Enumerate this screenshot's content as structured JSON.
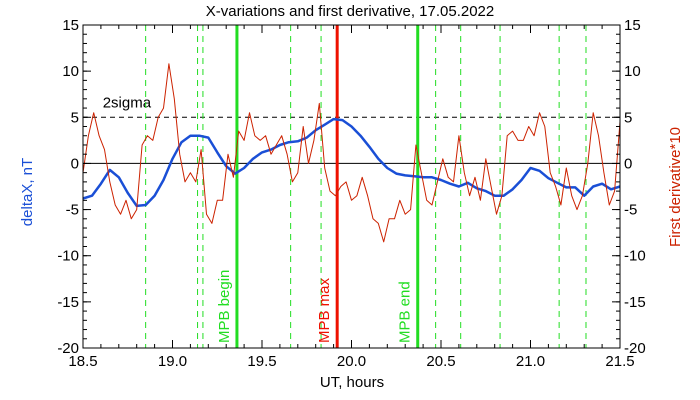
{
  "chart_data": {
    "type": "line",
    "title": "X-variations and first derivative, 17.05.2022",
    "xlabel": "UT, hours",
    "ylabel_left": "deltaX, nT",
    "ylabel_right": "First derivative*10",
    "xlim": [
      18.5,
      21.5
    ],
    "ylim": [
      -20,
      15
    ],
    "xticks": [
      18.5,
      19.0,
      19.5,
      20.0,
      20.5,
      21.0,
      21.5
    ],
    "xtick_labels": [
      "18.5",
      "19.0",
      "19.5",
      "20.0",
      "20.5",
      "21.0",
      "21.5"
    ],
    "yticks": [
      -20,
      -15,
      -10,
      -5,
      0,
      5,
      10,
      15
    ],
    "ytick_labels": [
      "-20",
      "-15",
      "-10",
      "-5",
      "0",
      "5",
      "10",
      "15"
    ],
    "sigma_level": 5,
    "sigma_label": "2sigma",
    "colors": {
      "deltaX": "#1a4fd6",
      "derivative": "#cc2200",
      "mpb_boundary": "#22dd22",
      "mpb_max": "#ee1100",
      "axis": "#000000"
    },
    "series": [
      {
        "name": "deltaX, nT",
        "color": "#1a4fd6",
        "x": [
          18.5,
          18.55,
          18.6,
          18.65,
          18.7,
          18.75,
          18.8,
          18.85,
          18.9,
          18.95,
          19.0,
          19.05,
          19.1,
          19.15,
          19.2,
          19.25,
          19.3,
          19.35,
          19.4,
          19.45,
          19.5,
          19.55,
          19.6,
          19.65,
          19.7,
          19.75,
          19.8,
          19.85,
          19.9,
          19.95,
          20.0,
          20.05,
          20.1,
          20.15,
          20.2,
          20.25,
          20.3,
          20.35,
          20.4,
          20.45,
          20.5,
          20.55,
          20.6,
          20.65,
          20.7,
          20.75,
          20.8,
          20.85,
          20.9,
          20.95,
          21.0,
          21.05,
          21.1,
          21.15,
          21.2,
          21.25,
          21.3,
          21.35,
          21.4,
          21.45,
          21.5
        ],
        "y": [
          -3.8,
          -3.5,
          -2.2,
          -0.7,
          -1.5,
          -3.2,
          -4.6,
          -4.5,
          -3.5,
          -1.8,
          0.5,
          2.3,
          3.0,
          3.0,
          2.8,
          1.2,
          -0.3,
          -1.1,
          -0.5,
          0.5,
          1.2,
          1.5,
          2.0,
          2.3,
          2.4,
          2.8,
          3.6,
          4.2,
          4.8,
          4.7,
          4.0,
          3.0,
          1.8,
          0.5,
          -0.5,
          -1.1,
          -1.3,
          -1.4,
          -1.5,
          -1.5,
          -1.8,
          -2.2,
          -2.5,
          -2.1,
          -2.7,
          -3.0,
          -3.5,
          -3.5,
          -2.8,
          -1.8,
          -0.5,
          -0.8,
          -1.6,
          -2.1,
          -2.6,
          -2.6,
          -3.5,
          -2.5,
          -2.2,
          -2.8,
          -2.5
        ]
      },
      {
        "name": "First derivative*10",
        "color": "#cc2200",
        "x": [
          18.5,
          18.53,
          18.56,
          18.59,
          18.62,
          18.65,
          18.68,
          18.71,
          18.74,
          18.77,
          18.8,
          18.83,
          18.86,
          18.89,
          18.92,
          18.95,
          18.98,
          19.01,
          19.04,
          19.07,
          19.1,
          19.13,
          19.16,
          19.19,
          19.22,
          19.25,
          19.28,
          19.31,
          19.34,
          19.37,
          19.4,
          19.43,
          19.46,
          19.49,
          19.52,
          19.55,
          19.58,
          19.61,
          19.64,
          19.67,
          19.7,
          19.73,
          19.76,
          19.79,
          19.82,
          19.85,
          19.88,
          19.91,
          19.94,
          19.97,
          20.0,
          20.03,
          20.06,
          20.09,
          20.12,
          20.15,
          20.18,
          20.21,
          20.24,
          20.27,
          20.3,
          20.33,
          20.36,
          20.39,
          20.42,
          20.45,
          20.48,
          20.51,
          20.54,
          20.57,
          20.6,
          20.63,
          20.66,
          20.69,
          20.72,
          20.75,
          20.78,
          20.81,
          20.84,
          20.87,
          20.9,
          20.93,
          20.96,
          20.99,
          21.02,
          21.05,
          21.08,
          21.11,
          21.14,
          21.17,
          21.2,
          21.23,
          21.26,
          21.29,
          21.32,
          21.35,
          21.38,
          21.41,
          21.44,
          21.47,
          21.5
        ],
        "y": [
          -1.0,
          3.0,
          5.5,
          3.0,
          1.5,
          -2.0,
          -4.5,
          -5.5,
          -4.0,
          -6.0,
          -5.0,
          2.0,
          3.0,
          2.5,
          5.0,
          6.0,
          10.8,
          7.0,
          1.0,
          -2.0,
          -1.0,
          -2.0,
          1.5,
          -5.5,
          -6.5,
          -4.0,
          -4.0,
          1.0,
          -1.5,
          3.5,
          2.5,
          5.5,
          3.0,
          2.5,
          3.0,
          1.0,
          2.0,
          3.0,
          1.0,
          -2.0,
          -1.0,
          4.0,
          0.0,
          2.5,
          6.5,
          -0.5,
          -3.0,
          -3.5,
          -2.5,
          -2.0,
          -4.0,
          -3.5,
          -1.5,
          -3.5,
          -6.0,
          -6.5,
          -8.5,
          -6.0,
          -6.0,
          -4.0,
          -5.5,
          -5.0,
          2.0,
          -1.0,
          -4.0,
          -4.5,
          -2.0,
          0.5,
          -1.5,
          -2.0,
          3.0,
          -1.0,
          -3.5,
          -1.5,
          -4.0,
          0.5,
          -2.5,
          -5.5,
          -3.5,
          3.0,
          3.5,
          2.5,
          2.5,
          4.0,
          3.0,
          5.5,
          4.0,
          -1.0,
          -2.5,
          -4.5,
          -0.5,
          -3.5,
          -5.0,
          -3.5,
          0.0,
          5.5,
          3.0,
          -1.0,
          -4.5,
          -3.0,
          4.5
        ]
      }
    ],
    "vertical_lines": [
      {
        "x": 18.85,
        "style": "dashed",
        "color": "#22dd22"
      },
      {
        "x": 19.14,
        "style": "dashed",
        "color": "#22dd22"
      },
      {
        "x": 19.17,
        "style": "dashed",
        "color": "#22dd22"
      },
      {
        "x": 19.36,
        "style": "solid",
        "color": "#22dd22",
        "label": "MPB begin"
      },
      {
        "x": 19.66,
        "style": "dashed",
        "color": "#22dd22"
      },
      {
        "x": 19.83,
        "style": "dashed",
        "color": "#22dd22"
      },
      {
        "x": 19.92,
        "style": "solid",
        "color": "#ee1100",
        "label": "MPB max"
      },
      {
        "x": 20.37,
        "style": "solid",
        "color": "#22dd22",
        "label": "MPB end"
      },
      {
        "x": 20.47,
        "style": "dashed",
        "color": "#22dd22"
      },
      {
        "x": 20.61,
        "style": "dashed",
        "color": "#22dd22"
      },
      {
        "x": 20.83,
        "style": "dashed",
        "color": "#22dd22"
      },
      {
        "x": 21.16,
        "style": "dashed",
        "color": "#22dd22"
      },
      {
        "x": 21.31,
        "style": "dashed",
        "color": "#22dd22"
      }
    ],
    "grid": false,
    "legend": "none"
  }
}
